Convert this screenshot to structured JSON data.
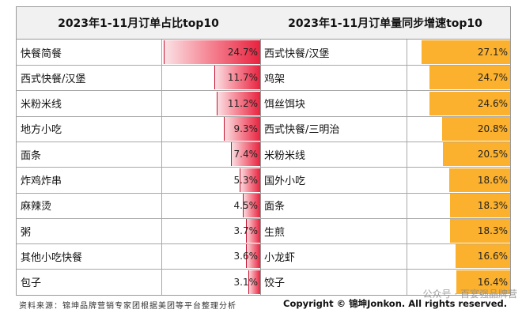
{
  "chart_data": [
    {
      "type": "bar",
      "title": "2023年1-11月订单占比top10",
      "categories": [
        "快餐简餐",
        "西式快餐/汉堡",
        "米粉米线",
        "地方小吃",
        "面条",
        "炸鸡炸串",
        "麻辣烫",
        "粥",
        "其他小吃快餐",
        "包子"
      ],
      "values": [
        24.7,
        11.7,
        11.2,
        9.3,
        7.4,
        5.3,
        4.5,
        3.7,
        3.6,
        3.1
      ],
      "value_labels": [
        "24.7%",
        "11.7%",
        "11.2%",
        "9.3%",
        "7.4%",
        "5.3%",
        "4.5%",
        "3.7%",
        "3.6%",
        "3.1%"
      ],
      "unit": "%",
      "color": "#e8233f"
    },
    {
      "type": "bar",
      "title": "2023年1-11月订单量同步增速top10",
      "categories": [
        "西式快餐/汉堡",
        "鸡架",
        "饵丝饵块",
        "西式快餐/三明治",
        "米粉米线",
        "国外小吃",
        "面条",
        "生煎",
        "小龙虾",
        "饺子"
      ],
      "values": [
        27.1,
        24.7,
        24.6,
        20.8,
        20.5,
        18.6,
        18.3,
        18.3,
        16.6,
        16.4
      ],
      "value_labels": [
        "27.1%",
        "24.7%",
        "24.6%",
        "20.8%",
        "20.5%",
        "18.6%",
        "18.3%",
        "18.3%",
        "16.6%",
        "16.4%"
      ],
      "unit": "%",
      "color": "#fbb12e"
    }
  ],
  "footer": {
    "source": "资料来源：锦坤品牌营销专家团根据美团等平台整理分析",
    "copyright": "Copyright © 锦坤Jonkon. All rights reserved."
  },
  "watermark": "公众号 · 百宴强品牌营"
}
